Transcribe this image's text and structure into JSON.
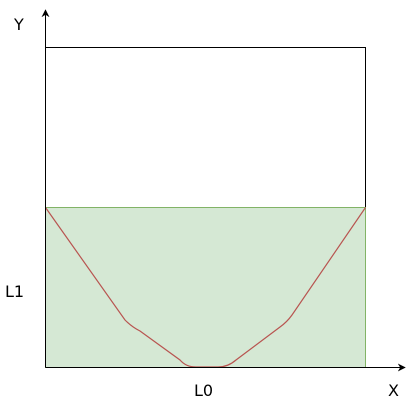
{
  "diagram": {
    "axis_x_label": "X",
    "axis_y_label": "Y",
    "width_label": "L0",
    "height_label": "L1",
    "colors": {
      "axis": "#000000",
      "outline": "#000000",
      "fill": "#d5e8d4",
      "fill_border": "#82b366",
      "profile_curve": "#b85450"
    }
  }
}
